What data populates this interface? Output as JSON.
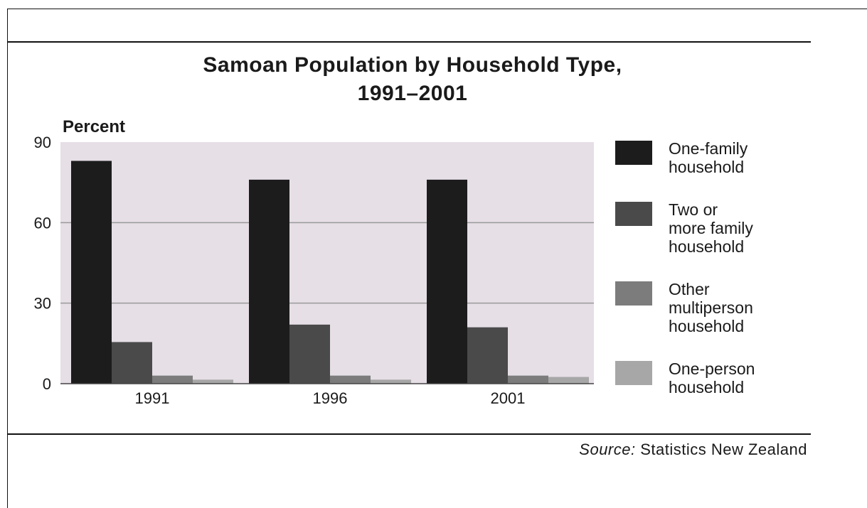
{
  "chart_data": {
    "type": "bar",
    "title": "Samoan Population by Household Type,\n1991–2001",
    "ylabel": "Percent",
    "xlabel": "",
    "ylim": [
      0,
      90
    ],
    "yticks": [
      0,
      30,
      60,
      90
    ],
    "categories": [
      "1991",
      "1996",
      "2001"
    ],
    "series": [
      {
        "name": "One-family\nhousehold",
        "color": "#1c1c1c",
        "values": [
          83,
          76,
          76
        ]
      },
      {
        "name": "Two or\nmore family\nhousehold",
        "color": "#4a4a4a",
        "values": [
          15.5,
          22,
          21
        ]
      },
      {
        "name": "Other\nmultiperson\nhousehold",
        "color": "#7c7c7c",
        "values": [
          3,
          3,
          3
        ]
      },
      {
        "name": "One-person\nhousehold",
        "color": "#a7a7a7",
        "values": [
          1.5,
          1.5,
          2.5
        ]
      }
    ],
    "plot_background": "#e6dfe6",
    "grid": true,
    "legend_position": "right"
  },
  "source": {
    "label": "Source:",
    "text": "Statistics New Zealand"
  }
}
